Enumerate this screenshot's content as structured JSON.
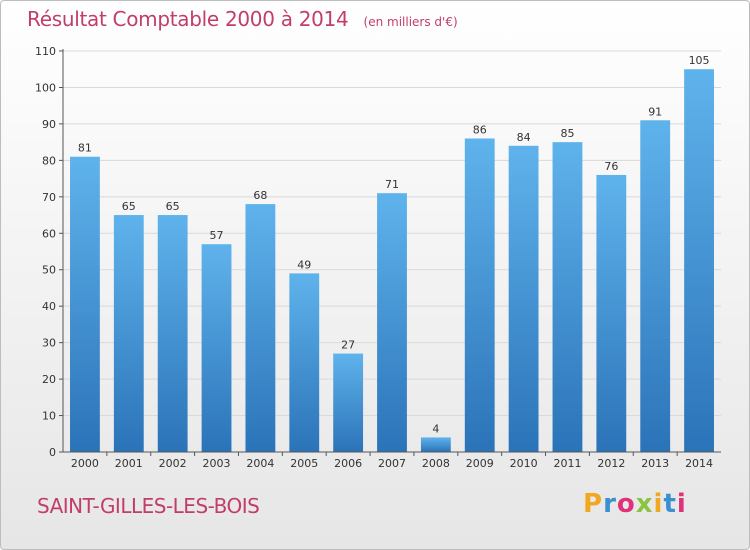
{
  "header": {
    "title": "Résultat Comptable 2000 à 2014",
    "unit_note": "(en milliers d'€)"
  },
  "footer": {
    "commune": "SAINT-GILLES-LES-BOIS",
    "logo_text": "Proxiti",
    "logo_letter_colors": [
      "#f0a81e",
      "#3a8fd0",
      "#e0327a",
      "#8bc43f",
      "#f0a81e",
      "#3a8fd0",
      "#e0327a"
    ]
  },
  "colors": {
    "accent": "#c23d6a",
    "bar_top": "#5fb3ec",
    "bar_bottom": "#2b73b8",
    "grid": "#d9d9d9"
  },
  "chart_data": {
    "type": "bar",
    "title": "Résultat Comptable 2000 à 2014",
    "subtitle": "(en milliers d'€)",
    "xlabel": "",
    "ylabel": "",
    "categories": [
      "2000",
      "2001",
      "2002",
      "2003",
      "2004",
      "2005",
      "2006",
      "2007",
      "2008",
      "2009",
      "2010",
      "2011",
      "2012",
      "2013",
      "2014"
    ],
    "values": [
      81,
      65,
      65,
      57,
      68,
      49,
      27,
      71,
      4,
      86,
      84,
      85,
      76,
      91,
      105
    ],
    "ylim": [
      0,
      110
    ],
    "yticks": [
      0,
      10,
      20,
      30,
      40,
      50,
      60,
      70,
      80,
      90,
      100,
      110
    ],
    "grid": true,
    "data_labels": true,
    "legend": "none"
  }
}
